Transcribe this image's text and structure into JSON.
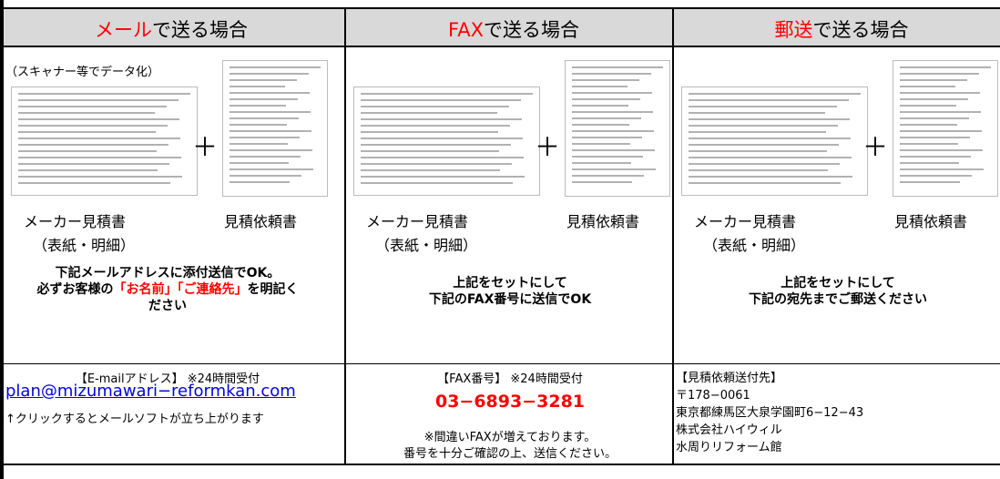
{
  "columns": [
    {
      "header": {
        "highlight": "メール",
        "rest": "で送る場合"
      },
      "note": "（スキャナー等でデータ化）",
      "plus": "＋",
      "doc1_label": "メーカー見積書",
      "doc1_sub": "（表紙・明細）",
      "doc2_label": "見積依頼書",
      "instruction": [
        [
          "下記メールアドレスに添付送信でOK。"
        ],
        [
          "必ずお客様の",
          {
            "text": "「お名前」「ご連絡先」"
          },
          "を明記く"
        ],
        [
          "ださい"
        ]
      ],
      "contact": {
        "heading": "【E-mailアドレス】 ※24時間受付",
        "link": "plan@mizumawari−reformkan.com",
        "note": "↑クリックするとメールソフトが立ち上がります"
      }
    },
    {
      "header": {
        "highlight": "FAX",
        "rest": "で送る場合"
      },
      "plus": "＋",
      "doc1_label": "メーカー見積書",
      "doc1_sub": "（表紙・明細）",
      "doc2_label": "見積依頼書",
      "instruction": [
        [
          "上記をセットにして"
        ],
        [
          "下記のFAX番号に送信でOK"
        ]
      ],
      "contact": {
        "heading": "【FAX番号】 ※24時間受付",
        "number": "03−6893−3281",
        "notes": [
          "※間違いFAXが増えております。",
          "番号を十分ご確認の上、送信ください。"
        ]
      }
    },
    {
      "header": {
        "highlight": "郵送",
        "rest": "で送る場合"
      },
      "plus": "＋",
      "doc1_label": "メーカー見積書",
      "doc1_sub": "（表紙・明細）",
      "doc2_label": "見積依頼書",
      "instruction": [
        [
          "上記をセットにして"
        ],
        [
          "下記の宛先までご郵送ください"
        ]
      ],
      "contact": {
        "lines": [
          "【見積依頼送付先】",
          "〒178−0061",
          "東京都練馬区大泉学園町6−12−43",
          "株式会社ハイウィル",
          "水周りリフォーム館"
        ]
      }
    }
  ]
}
